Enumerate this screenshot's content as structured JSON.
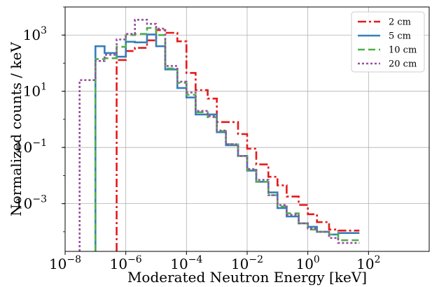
{
  "chart_data": {
    "type": "line",
    "step": "post",
    "xlabel": "Moderated Neutron Energy [keV]",
    "ylabel": "Normalized counts / keV",
    "xscale": "log",
    "yscale": "log",
    "xlim": [
      1e-08,
      10000
    ],
    "ylim": [
      2e-05,
      10000
    ],
    "grid": true,
    "legend_position": "top-right",
    "x_ticks": [
      {
        "base": "10",
        "exp": "−8",
        "value": 1e-08
      },
      {
        "base": "10",
        "exp": "−6",
        "value": 1e-06
      },
      {
        "base": "10",
        "exp": "−4",
        "value": 0.0001
      },
      {
        "base": "10",
        "exp": "−2",
        "value": 0.01
      },
      {
        "base": "10",
        "exp": "0",
        "value": 1
      },
      {
        "base": "10",
        "exp": "2",
        "value": 100
      }
    ],
    "y_ticks": [
      {
        "base": "10",
        "exp": "3",
        "value": 1000
      },
      {
        "base": "10",
        "exp": "1",
        "value": 10
      },
      {
        "base": "10",
        "exp": "−1",
        "value": 0.1
      },
      {
        "base": "10",
        "exp": "−3",
        "value": 0.001
      }
    ],
    "bin_edges": [
      3e-08,
      1e-07,
      2e-07,
      5e-07,
      1e-06,
      2e-06,
      5e-06,
      1e-05,
      2e-05,
      5e-05,
      0.0001,
      0.0002,
      0.0005,
      0.001,
      0.002,
      0.005,
      0.01,
      0.02,
      0.05,
      0.1,
      0.2,
      0.5,
      1,
      2,
      5,
      10,
      20,
      50,
      100,
      200,
      500,
      1000,
      2000,
      5000
    ],
    "series": [
      {
        "name": "2 cm",
        "color": "#e41a1c",
        "dash": "12,4,3,4",
        "start_bin": 3,
        "values": [
          null,
          null,
          null,
          130,
          270,
          350,
          650,
          1500,
          1200,
          600,
          45,
          11,
          5.5,
          0.8,
          0.8,
          0.3,
          0.09,
          0.025,
          0.009,
          0.0045,
          0.0018,
          0.0009,
          0.00042,
          0.00022,
          0.00012,
          0.00011,
          0.00011
        ]
      },
      {
        "name": "5 cm",
        "color": "#377eb8",
        "dash": "",
        "start_bin": 1,
        "values": [
          null,
          400,
          230,
          170,
          580,
          550,
          1050,
          400,
          60,
          13,
          6,
          1.5,
          1.5,
          0.35,
          0.12,
          0.05,
          0.015,
          0.006,
          0.0025,
          0.0007,
          0.00035,
          0.0002,
          0.00015,
          0.0001,
          8e-05,
          9e-05,
          9e-05
        ]
      },
      {
        "name": "10 cm",
        "color": "#4daf4a",
        "dash": "10,5",
        "start_bin": 1,
        "values": [
          null,
          140,
          150,
          380,
          1000,
          1100,
          1800,
          1000,
          65,
          20,
          7.5,
          1.8,
          1.2,
          0.38,
          0.13,
          0.05,
          0.016,
          0.006,
          0.002,
          0.0008,
          0.00045,
          0.0002,
          0.00012,
          0.0001,
          8e-05,
          5e-05,
          5e-05
        ]
      },
      {
        "name": "20 cm",
        "color": "#984ea3",
        "dash": "3,3",
        "start_bin": 0,
        "values": [
          25,
          120,
          200,
          700,
          1100,
          3500,
          2500,
          1700,
          80,
          22,
          9,
          2,
          1.3,
          0.4,
          0.13,
          0.05,
          0.017,
          0.007,
          0.002,
          0.0009,
          0.0004,
          0.0002,
          0.00013,
          0.0001,
          6e-05,
          4e-05,
          4e-05
        ]
      }
    ]
  }
}
